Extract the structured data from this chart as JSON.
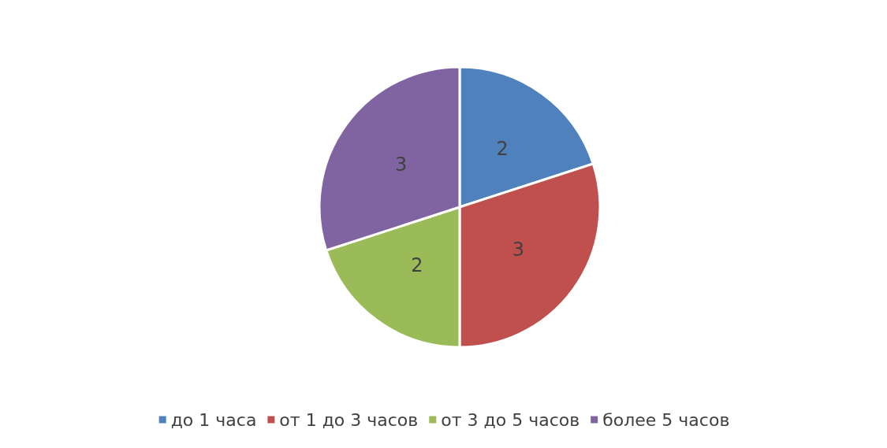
{
  "chart_data": {
    "type": "pie",
    "categories": [
      "до 1 часа",
      "от 1 до 3 часов",
      "от 3 до 5 часов",
      "более 5 часов"
    ],
    "values": [
      2,
      3,
      2,
      3
    ],
    "colors": [
      "#4f81bd",
      "#c0504d",
      "#9bbb59",
      "#8064a2"
    ],
    "data_labels": true,
    "legend": "bottom"
  }
}
